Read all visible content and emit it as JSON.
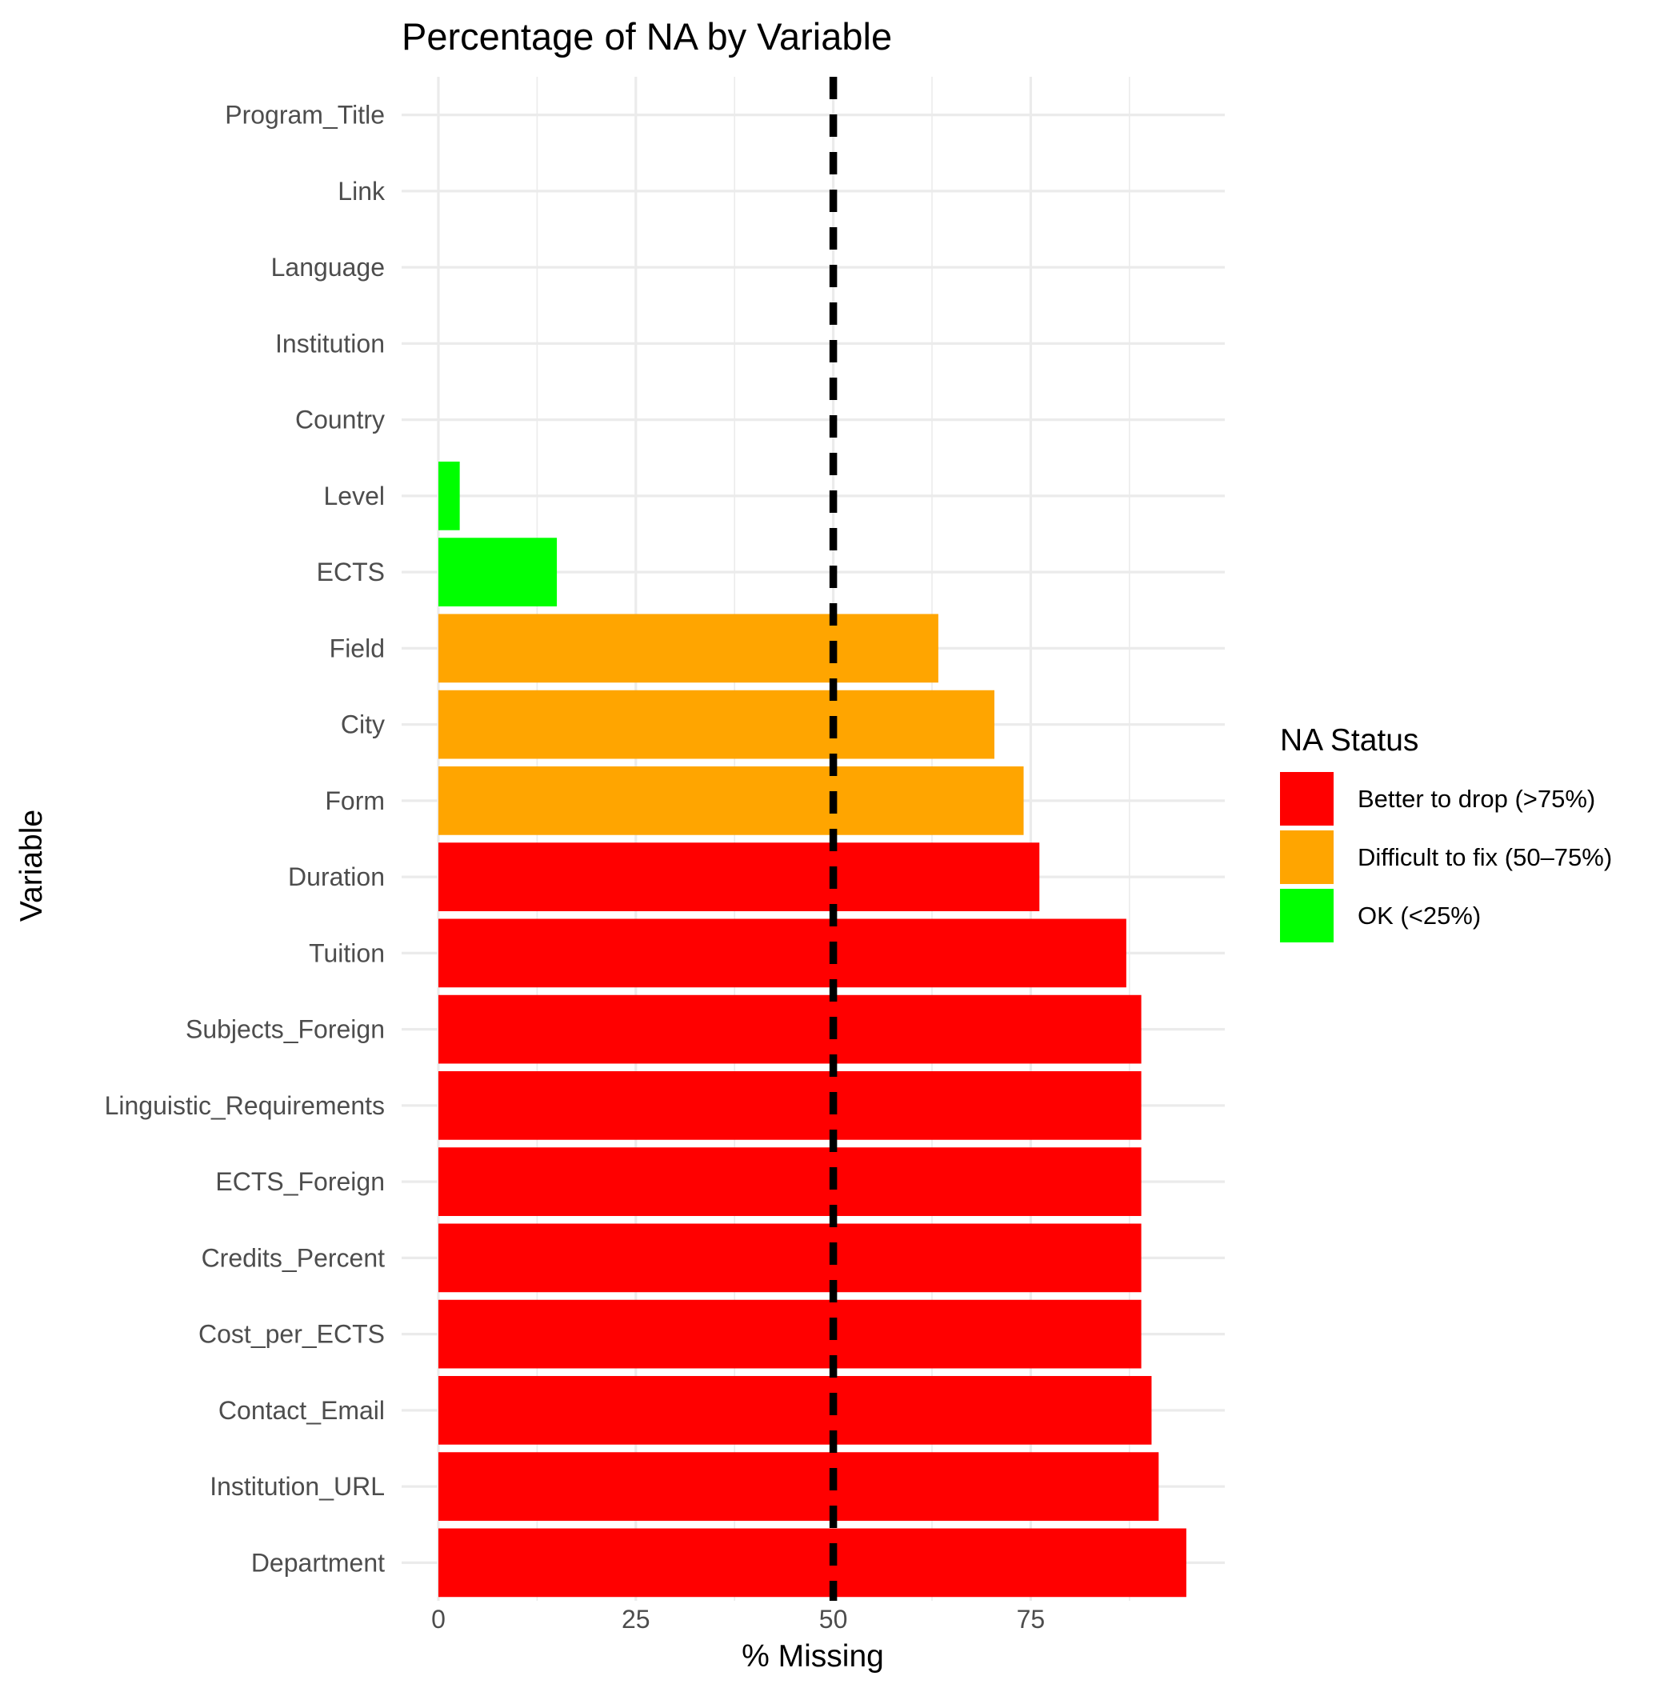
{
  "chart_data": {
    "type": "bar",
    "orientation": "horizontal",
    "title": "Percentage of NA by Variable",
    "xlabel": "% Missing",
    "ylabel": "Variable",
    "xlim": [
      -2,
      95
    ],
    "xticks": [
      0,
      25,
      50,
      75
    ],
    "grid": true,
    "reference_line": {
      "x": 50,
      "style": "dashed",
      "color": "#000000"
    },
    "categories": [
      "Program_Title",
      "Link",
      "Language",
      "Institution",
      "Country",
      "Level",
      "ECTS",
      "Field",
      "City",
      "Form",
      "Duration",
      "Tuition",
      "Subjects_Foreign",
      "Linguistic_Requirements",
      "ECTS_Foreign",
      "Credits_Percent",
      "Cost_per_ECTS",
      "Contact_Email",
      "Institution_URL",
      "Department"
    ],
    "values": [
      0,
      0,
      0,
      0,
      0,
      2.7,
      15,
      63.3,
      70.4,
      74.1,
      76.1,
      87.1,
      89,
      89,
      89,
      89,
      89,
      90.3,
      91.2,
      94.7
    ],
    "status": [
      "OK (<25%)",
      "OK (<25%)",
      "OK (<25%)",
      "OK (<25%)",
      "OK (<25%)",
      "OK (<25%)",
      "OK (<25%)",
      "Difficult to fix (50–75%)",
      "Difficult to fix (50–75%)",
      "Difficult to fix (50–75%)",
      "Better to drop (>75%)",
      "Better to drop (>75%)",
      "Better to drop (>75%)",
      "Better to drop (>75%)",
      "Better to drop (>75%)",
      "Better to drop (>75%)",
      "Better to drop (>75%)",
      "Better to drop (>75%)",
      "Better to drop (>75%)",
      "Better to drop (>75%)"
    ],
    "legend": {
      "title": "NA Status",
      "position": "right",
      "entries": [
        {
          "label": "Better to drop (>75%)",
          "color": "#ff0000"
        },
        {
          "label": "Difficult to fix (50–75%)",
          "color": "#ffa500"
        },
        {
          "label": "OK (<25%)",
          "color": "#00ff00"
        }
      ]
    }
  }
}
